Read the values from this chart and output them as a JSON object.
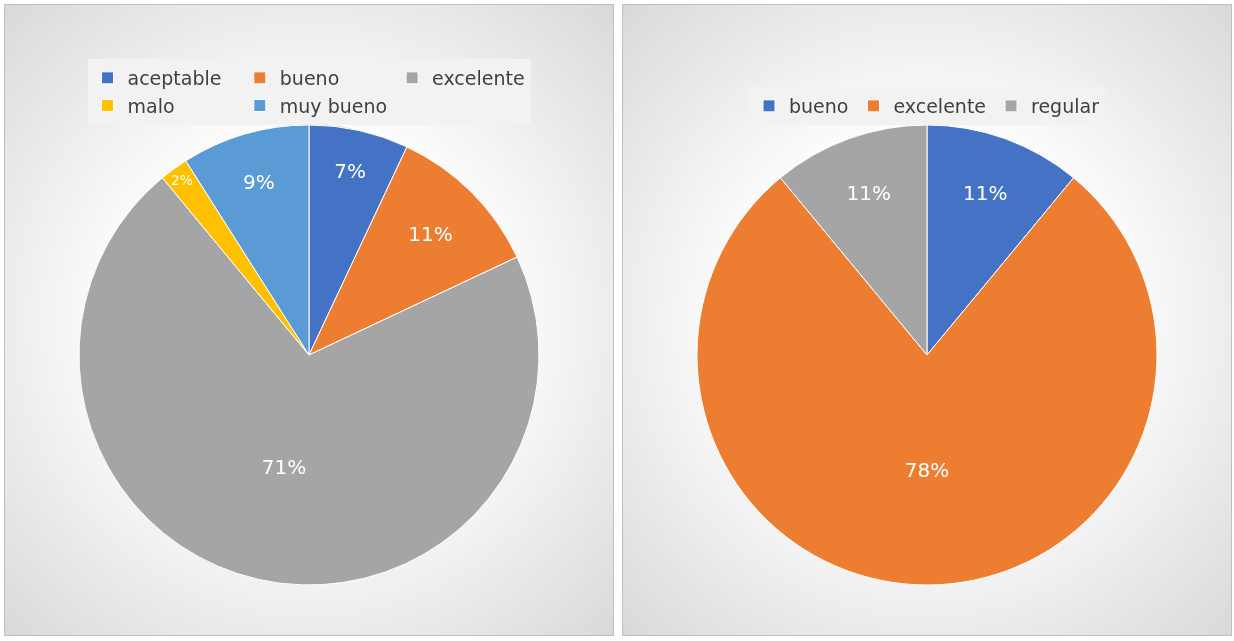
{
  "chart_data": [
    {
      "type": "pie",
      "categories": [
        "aceptable",
        "bueno",
        "excelente",
        "malo",
        "muy bueno"
      ],
      "values": [
        7,
        11,
        71,
        2,
        9
      ],
      "colors": [
        "#4472c4",
        "#ed7d31",
        "#a5a5a5",
        "#ffc000",
        "#5b9bd5"
      ],
      "value_labels": [
        "7%",
        "11%",
        "71%",
        "2%",
        "9%"
      ],
      "legend": "top"
    },
    {
      "type": "pie",
      "categories": [
        "bueno",
        "excelente",
        "regular"
      ],
      "values": [
        11,
        78,
        11
      ],
      "colors": [
        "#4472c4",
        "#ed7d31",
        "#a5a5a5"
      ],
      "value_labels": [
        "11%",
        "78%",
        "11%"
      ],
      "legend": "top"
    }
  ]
}
